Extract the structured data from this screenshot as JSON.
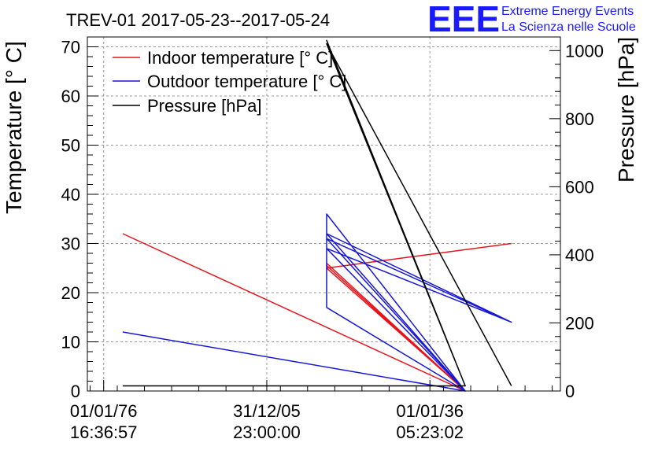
{
  "chart_data": {
    "type": "line",
    "title": "TREV-01 2017-05-23--2017-05-24",
    "ylabel_left": "Temperature [° C]",
    "ylabel_right": "Pressure [hPa]",
    "ylim_left": [
      0,
      72
    ],
    "ylim_right": [
      0,
      1040
    ],
    "xlim": [
      -3,
      84
    ],
    "grid": true,
    "x_ticks": [
      {
        "x": 0,
        "line1": "01/01/76",
        "line2": "16:36:57"
      },
      {
        "x": 30,
        "line1": "31/12/05",
        "line2": "23:00:00"
      },
      {
        "x": 60,
        "line1": "01/01/36",
        "line2": "05:23:02"
      }
    ],
    "y_ticks_left": [
      0,
      10,
      20,
      30,
      40,
      50,
      60,
      70
    ],
    "y_ticks_right": [
      0,
      200,
      400,
      600,
      800,
      1000
    ],
    "legend": {
      "position": "top-left"
    },
    "series": [
      {
        "name": "Indoor temperature [° C]",
        "color": "#e8131a",
        "axis": "left",
        "points": [
          [
            3.5,
            32
          ],
          [
            66.5,
            0
          ],
          [
            41,
            25
          ],
          [
            66.5,
            0
          ],
          [
            41,
            25.5
          ],
          [
            66.5,
            0
          ],
          [
            41,
            26
          ],
          [
            66.5,
            0
          ],
          [
            41,
            25
          ],
          [
            75,
            30
          ]
        ]
      },
      {
        "name": "Outdoor temperature [° C]",
        "color": "#1717d6",
        "axis": "left",
        "points": [
          [
            3.5,
            12
          ],
          [
            66.5,
            0
          ],
          [
            41,
            17
          ],
          [
            41,
            36
          ],
          [
            66.5,
            0
          ],
          [
            41,
            32
          ],
          [
            75,
            14
          ],
          [
            41,
            31
          ],
          [
            66.5,
            0
          ],
          [
            41,
            29
          ],
          [
            66.5,
            0
          ],
          [
            41,
            29
          ],
          [
            75,
            14
          ]
        ]
      },
      {
        "name": "Pressure [hPa]",
        "color": "#000000",
        "axis": "right",
        "points": [
          [
            3.5,
            15
          ],
          [
            66.5,
            15
          ],
          [
            41,
            1030
          ],
          [
            66.5,
            15
          ],
          [
            41,
            1020
          ],
          [
            75,
            15
          ]
        ]
      }
    ]
  },
  "logo": {
    "mark": "EEE",
    "line1": "Extreme Energy Events",
    "line2": "La Scienza nelle Scuole"
  }
}
